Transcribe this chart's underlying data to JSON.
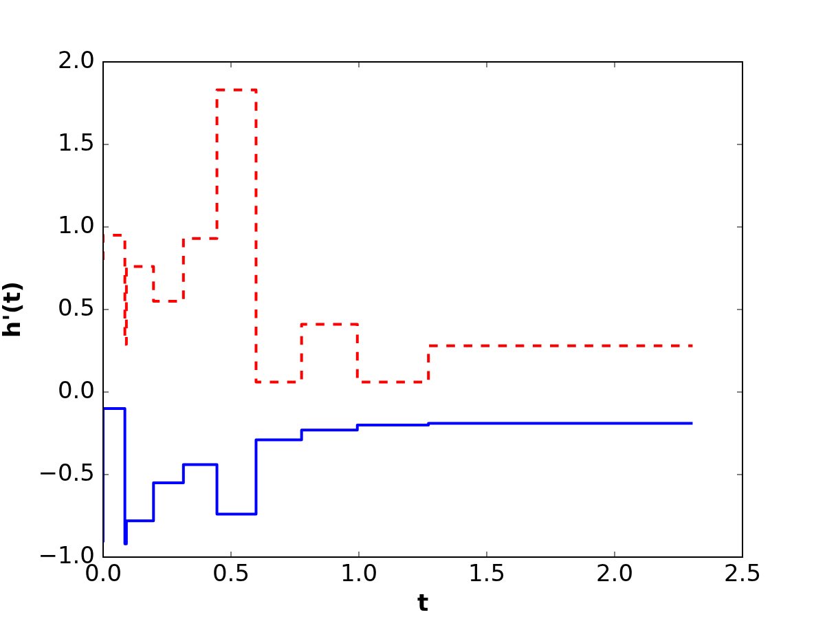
{
  "chart_data": {
    "type": "step",
    "xlabel": "t",
    "ylabel": "h'(t)",
    "x": [
      0,
      0.085,
      0.091,
      0.197,
      0.314,
      0.445,
      0.598,
      0.776,
      0.994,
      1.272,
      2.305
    ],
    "series": [
      {
        "color": "#ff0000",
        "line_style": "dashed",
        "values": [
          0.8,
          0.95,
          0.29,
          0.76,
          0.55,
          0.93,
          1.83,
          0.06,
          0.41,
          0.06,
          0.28
        ]
      },
      {
        "color": "#0000ff",
        "line_style": "solid",
        "values": [
          -0.91,
          -0.1,
          -0.92,
          -0.78,
          -0.55,
          -0.44,
          -0.74,
          -0.29,
          -0.23,
          -0.2,
          -0.19
        ]
      }
    ],
    "xlim": [
      0,
      2.5
    ],
    "xticks": [
      {
        "value": 0,
        "label": "0.0"
      },
      {
        "value": 0.5,
        "label": "0.5"
      },
      {
        "value": 1,
        "label": "1.0"
      },
      {
        "value": 1.5,
        "label": "1.5"
      },
      {
        "value": 2,
        "label": "2.0"
      },
      {
        "value": 2.5,
        "label": "2.5"
      }
    ],
    "ylim": [
      -1,
      2
    ],
    "yticks": [
      {
        "value": -1,
        "label": "−1.0"
      },
      {
        "value": -0.5,
        "label": "−0.5"
      },
      {
        "value": 0,
        "label": "0.0"
      },
      {
        "value": 0.5,
        "label": "0.5"
      },
      {
        "value": 1,
        "label": "1.0"
      },
      {
        "value": 1.5,
        "label": "1.5"
      },
      {
        "value": 2,
        "label": "2.0"
      }
    ],
    "grid": false,
    "legend": false,
    "marker": "none"
  }
}
